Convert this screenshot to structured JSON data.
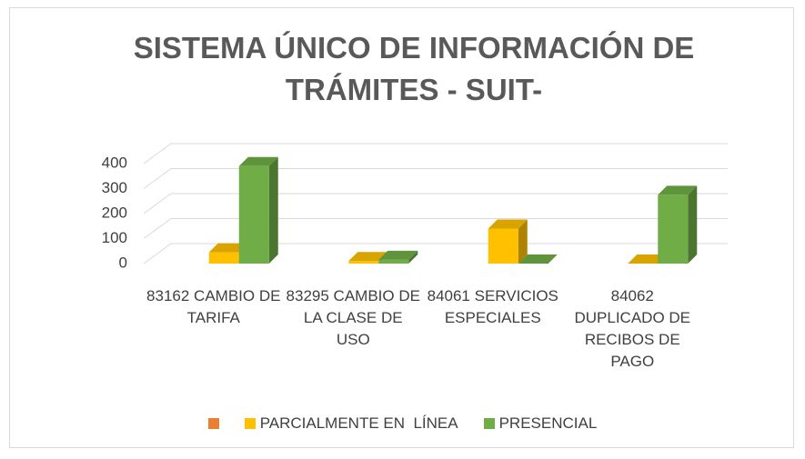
{
  "chart_data": {
    "type": "bar3d",
    "title": "SISTEMA ÚNICO DE INFORMACIÓN DE TRÁMITES - SUIT-",
    "categories": [
      "83162 CAMBIO DE TARIFA",
      "83295 CAMBIO DE LA CLASE DE USO",
      "84061 SERVICIOS ESPECIALES",
      "84062 DUPLICADO DE RECIBOS DE PAGO"
    ],
    "series": [
      {
        "color": "#ed7d31"
      },
      {
        "name": "PARCIALMENTE EN  LÍNEA",
        "color": "#ffc000",
        "values": [
          45,
          10,
          140,
          0
        ]
      },
      {
        "name": "PRESENCIAL",
        "color": "#70ad47",
        "values": [
          390,
          15,
          0,
          275
        ]
      }
    ],
    "ylim": [
      0,
      400
    ],
    "yticks": [
      0,
      100,
      200,
      300,
      400
    ],
    "grid": true,
    "legend": "bottom"
  }
}
